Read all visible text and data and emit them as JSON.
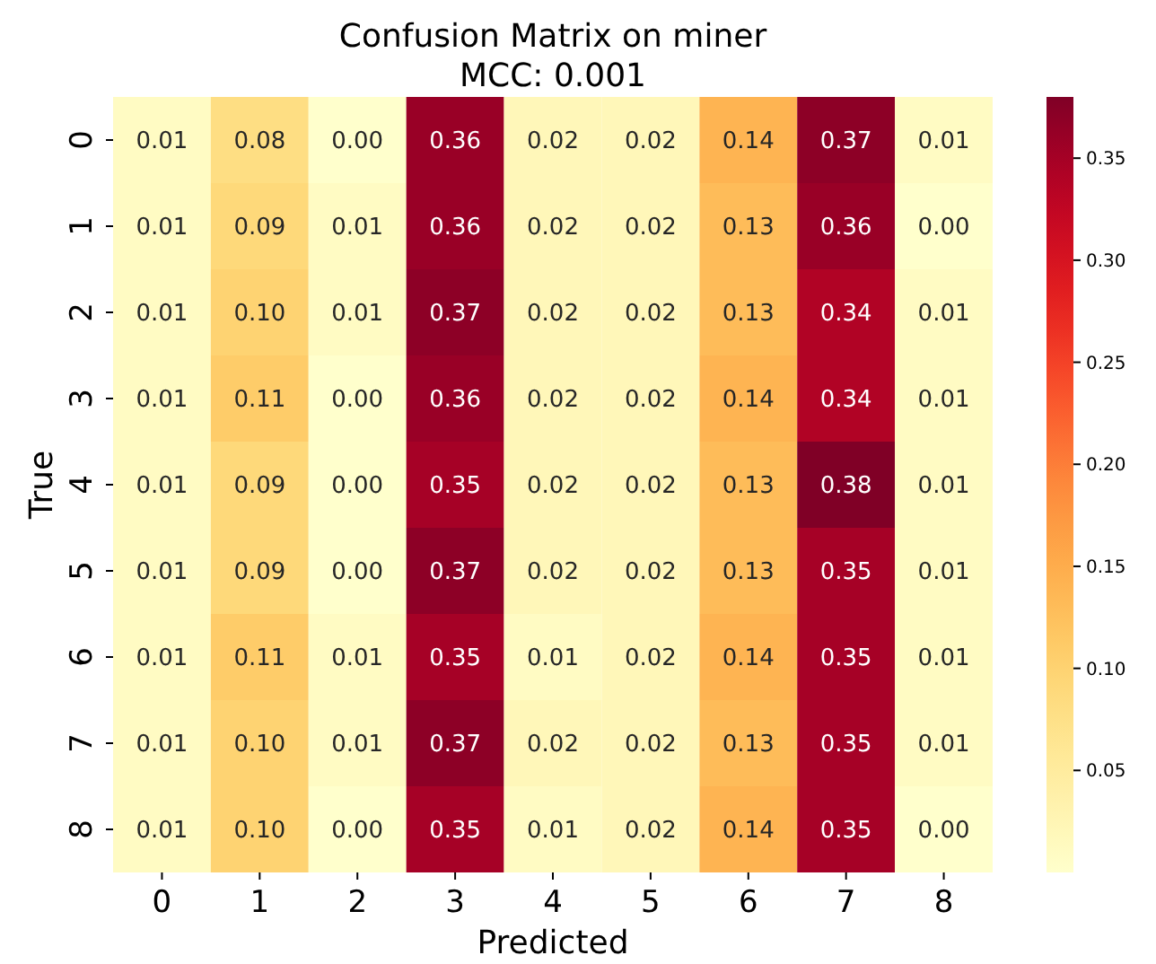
{
  "chart_data": {
    "type": "heatmap",
    "title": "Confusion Matrix on miner",
    "subtitle": "MCC: 0.001",
    "xlabel": "Predicted",
    "ylabel": "True",
    "categories": [
      "0",
      "1",
      "2",
      "3",
      "4",
      "5",
      "6",
      "7",
      "8"
    ],
    "y_categories": [
      "0",
      "1",
      "2",
      "3",
      "4",
      "5",
      "6",
      "7",
      "8"
    ],
    "cells": [
      [
        0.01,
        0.08,
        0.0,
        0.36,
        0.02,
        0.02,
        0.14,
        0.37,
        0.01
      ],
      [
        0.01,
        0.09,
        0.01,
        0.36,
        0.02,
        0.02,
        0.13,
        0.36,
        0.0
      ],
      [
        0.01,
        0.1,
        0.01,
        0.37,
        0.02,
        0.02,
        0.13,
        0.34,
        0.01
      ],
      [
        0.01,
        0.11,
        0.0,
        0.36,
        0.02,
        0.02,
        0.14,
        0.34,
        0.01
      ],
      [
        0.01,
        0.09,
        0.0,
        0.35,
        0.02,
        0.02,
        0.13,
        0.38,
        0.01
      ],
      [
        0.01,
        0.09,
        0.0,
        0.37,
        0.02,
        0.02,
        0.13,
        0.35,
        0.01
      ],
      [
        0.01,
        0.11,
        0.01,
        0.35,
        0.01,
        0.02,
        0.14,
        0.35,
        0.01
      ],
      [
        0.01,
        0.1,
        0.01,
        0.37,
        0.02,
        0.02,
        0.13,
        0.35,
        0.01
      ],
      [
        0.01,
        0.1,
        0.0,
        0.35,
        0.01,
        0.02,
        0.14,
        0.35,
        0.0
      ]
    ],
    "cell_labels": [
      [
        "0.01",
        "0.08",
        "0.00",
        "0.36",
        "0.02",
        "0.02",
        "0.14",
        "0.37",
        "0.01"
      ],
      [
        "0.01",
        "0.09",
        "0.01",
        "0.36",
        "0.02",
        "0.02",
        "0.13",
        "0.36",
        "0.00"
      ],
      [
        "0.01",
        "0.10",
        "0.01",
        "0.37",
        "0.02",
        "0.02",
        "0.13",
        "0.34",
        "0.01"
      ],
      [
        "0.01",
        "0.11",
        "0.00",
        "0.36",
        "0.02",
        "0.02",
        "0.14",
        "0.34",
        "0.01"
      ],
      [
        "0.01",
        "0.09",
        "0.00",
        "0.35",
        "0.02",
        "0.02",
        "0.13",
        "0.38",
        "0.01"
      ],
      [
        "0.01",
        "0.09",
        "0.00",
        "0.37",
        "0.02",
        "0.02",
        "0.13",
        "0.35",
        "0.01"
      ],
      [
        "0.01",
        "0.11",
        "0.01",
        "0.35",
        "0.01",
        "0.02",
        "0.14",
        "0.35",
        "0.01"
      ],
      [
        "0.01",
        "0.10",
        "0.01",
        "0.37",
        "0.02",
        "0.02",
        "0.13",
        "0.35",
        "0.01"
      ],
      [
        "0.01",
        "0.10",
        "0.00",
        "0.35",
        "0.01",
        "0.02",
        "0.14",
        "0.35",
        "0.00"
      ]
    ],
    "data_labels": true,
    "clim": [
      0,
      0.38
    ],
    "cticks": [
      {
        "value": 0.05,
        "label": "0.05"
      },
      {
        "value": 0.1,
        "label": "0.10"
      },
      {
        "value": 0.15,
        "label": "0.15"
      },
      {
        "value": 0.2,
        "label": "0.20"
      },
      {
        "value": 0.25,
        "label": "0.25"
      },
      {
        "value": 0.3,
        "label": "0.30"
      },
      {
        "value": 0.35,
        "label": "0.35"
      }
    ]
  }
}
